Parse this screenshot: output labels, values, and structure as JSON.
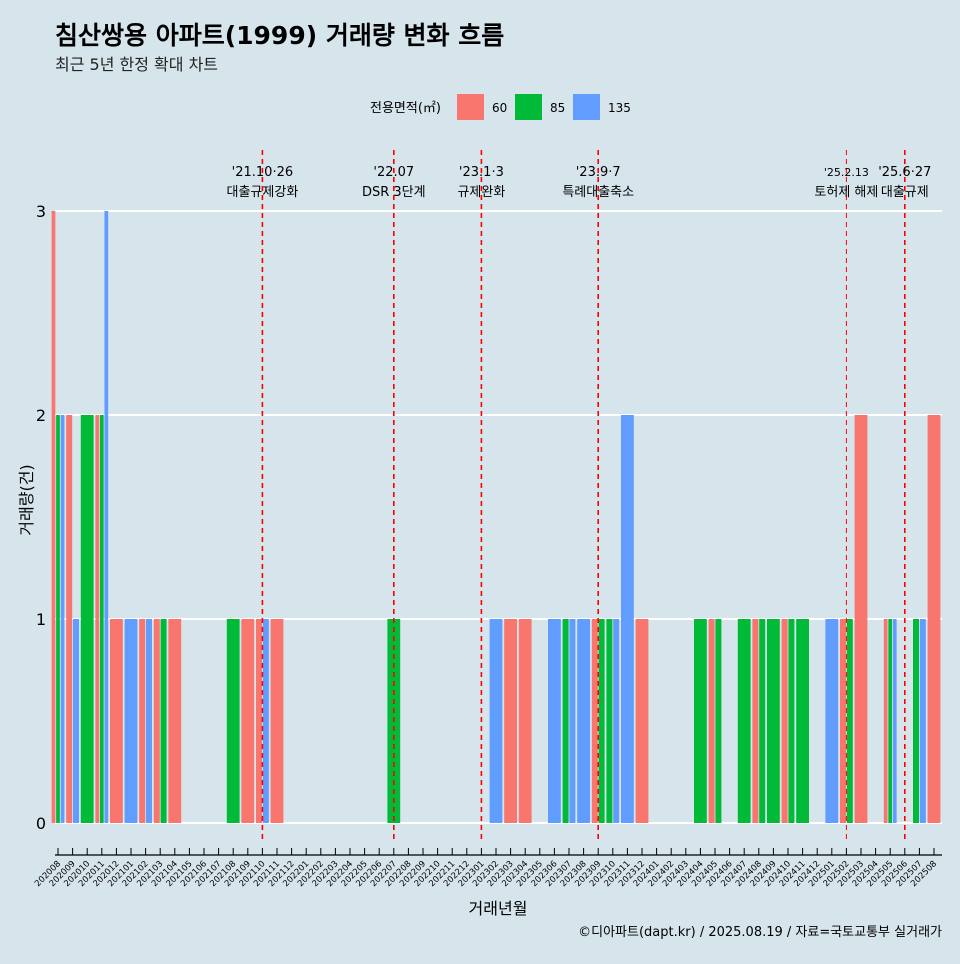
{
  "chart_data": {
    "type": "bar",
    "title": "침산쌍용 아파트(1999) 거래량 변화 흐름",
    "subtitle": "최근 5년 한정 확대 차트",
    "xlabel": "거래년월",
    "ylabel": "거래량(건)",
    "ylim": [
      0,
      3
    ],
    "yticks": [
      0,
      1,
      2,
      3
    ],
    "grid": true,
    "legend": {
      "title": "전용면적(㎡)",
      "placement": "top"
    },
    "caption": "©디아파트(dapt.kr) / 2025.08.19 / 자료=국토교통부 실거래가",
    "months": [
      "202008",
      "202009",
      "202010",
      "202011",
      "202012",
      "202101",
      "202102",
      "202103",
      "202104",
      "202105",
      "202106",
      "202107",
      "202108",
      "202109",
      "202110",
      "202111",
      "202112",
      "202201",
      "202202",
      "202203",
      "202204",
      "202205",
      "202206",
      "202207",
      "202208",
      "202209",
      "202210",
      "202211",
      "202212",
      "202301",
      "202302",
      "202303",
      "202304",
      "202305",
      "202306",
      "202307",
      "202308",
      "202309",
      "202310",
      "202311",
      "202312",
      "202401",
      "202402",
      "202403",
      "202404",
      "202405",
      "202406",
      "202407",
      "202408",
      "202409",
      "202410",
      "202411",
      "202412",
      "202501",
      "202502",
      "202503",
      "202504",
      "202505",
      "202506",
      "202507",
      "202508"
    ],
    "series": [
      {
        "name": "60",
        "color": "#f8766d",
        "points": [
          [
            "202008",
            3
          ],
          [
            "202009",
            2
          ],
          [
            "202011",
            2
          ],
          [
            "202012",
            1
          ],
          [
            "202102",
            1
          ],
          [
            "202103",
            1
          ],
          [
            "202104",
            1
          ],
          [
            "202109",
            1
          ],
          [
            "202110",
            1
          ],
          [
            "202111",
            1
          ],
          [
            "202303",
            1
          ],
          [
            "202304",
            1
          ],
          [
            "202309",
            1
          ],
          [
            "202312",
            1
          ],
          [
            "202405",
            1
          ],
          [
            "202408",
            1
          ],
          [
            "202410",
            1
          ],
          [
            "202502",
            1
          ],
          [
            "202503",
            2
          ],
          [
            "202505",
            1
          ],
          [
            "202508",
            2
          ]
        ]
      },
      {
        "name": "85",
        "color": "#00ba38",
        "points": [
          [
            "202008",
            2
          ],
          [
            "202010",
            2
          ],
          [
            "202011",
            2
          ],
          [
            "202103",
            1
          ],
          [
            "202108",
            1
          ],
          [
            "202207",
            1
          ],
          [
            "202307",
            1
          ],
          [
            "202309",
            1
          ],
          [
            "202310",
            1
          ],
          [
            "202404",
            1
          ],
          [
            "202405",
            1
          ],
          [
            "202407",
            1
          ],
          [
            "202408",
            1
          ],
          [
            "202409",
            1
          ],
          [
            "202410",
            1
          ],
          [
            "202411",
            1
          ],
          [
            "202502",
            1
          ],
          [
            "202505",
            1
          ],
          [
            "202507",
            1
          ]
        ]
      },
      {
        "name": "135",
        "color": "#619cff",
        "points": [
          [
            "202008",
            2
          ],
          [
            "202009",
            1
          ],
          [
            "202011",
            3
          ],
          [
            "202101",
            1
          ],
          [
            "202102",
            1
          ],
          [
            "202110",
            1
          ],
          [
            "202302",
            1
          ],
          [
            "202306",
            1
          ],
          [
            "202307",
            1
          ],
          [
            "202308",
            1
          ],
          [
            "202310",
            1
          ],
          [
            "202311",
            2
          ],
          [
            "202501",
            1
          ],
          [
            "202505",
            1
          ],
          [
            "202507",
            1
          ]
        ]
      }
    ],
    "annotations": [
      {
        "month": "202110",
        "date": "'21.10·26",
        "label": "대출규제강화"
      },
      {
        "month": "202207",
        "date": "'22.07",
        "label": "DSR 3단계"
      },
      {
        "month": "202301",
        "date": "'23.1·3",
        "label": "규제완화"
      },
      {
        "month": "202309",
        "date": "'23.9·7",
        "label": "특례대출축소"
      },
      {
        "month": "202502",
        "date": "'25.2.13",
        "label": "토허제 해제"
      },
      {
        "month": "202506",
        "date": "'25.6·27",
        "label": "대출규제"
      }
    ]
  }
}
